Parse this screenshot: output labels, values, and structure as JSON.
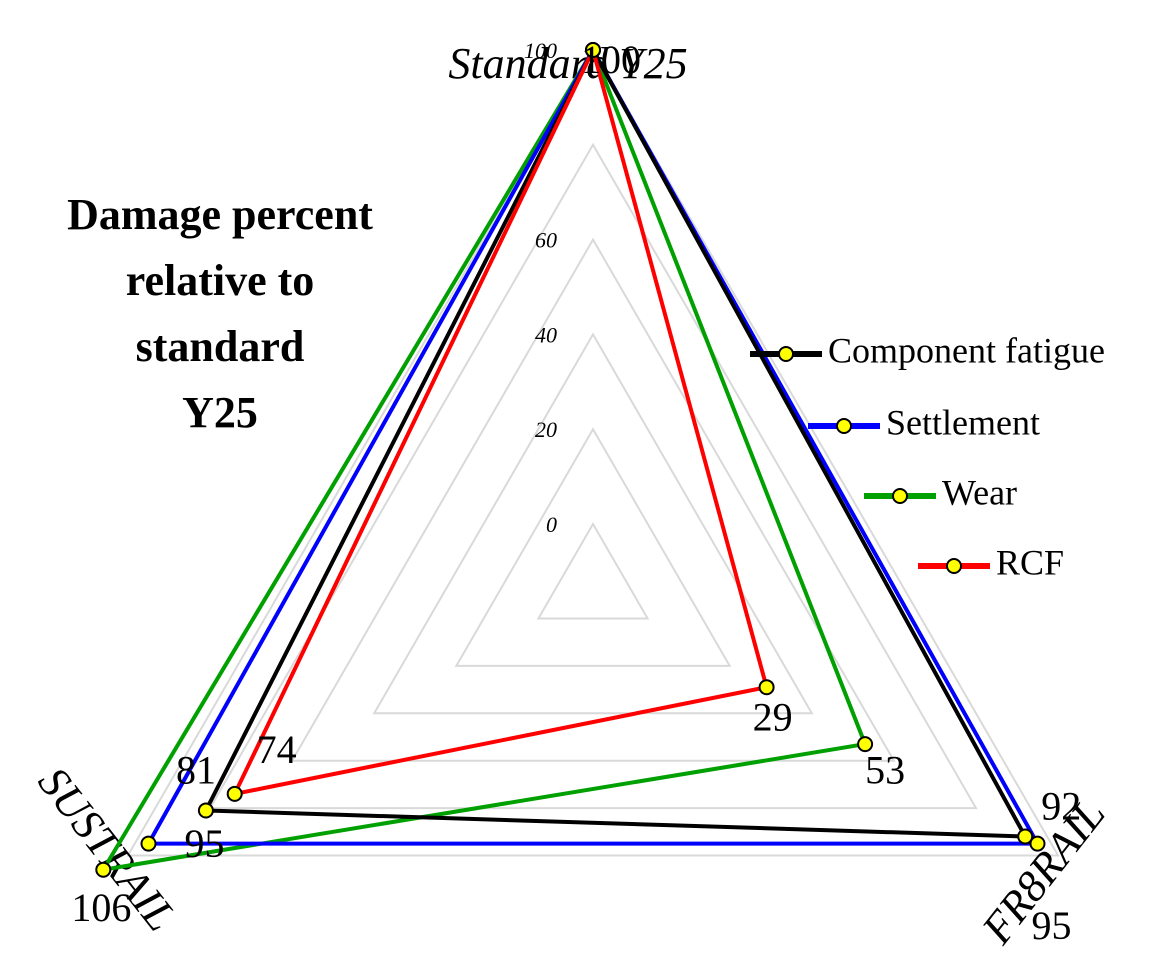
{
  "chart_data": {
    "type": "radar",
    "title_lines": [
      "Damage percent",
      "relative to",
      "standard",
      "Y25"
    ],
    "axes": [
      "Standard Y25",
      "FR8RAIL",
      "SUSTRAIL"
    ],
    "r_ticks": [
      "0",
      "20",
      "40",
      "60",
      "100"
    ],
    "r_range": [
      0,
      106
    ],
    "grid": true,
    "legend_position": "right",
    "series": [
      {
        "name": "Component fatigue",
        "color": "#000000",
        "values": [
          100,
          92,
          81
        ],
        "labels": [
          "",
          "92",
          "81"
        ]
      },
      {
        "name": "Settlement",
        "color": "#0000ff",
        "values": [
          100,
          95,
          95
        ],
        "labels": [
          "",
          "95",
          "95"
        ]
      },
      {
        "name": "Wear",
        "color": "#00a000",
        "values": [
          100,
          53,
          106
        ],
        "labels": [
          "",
          "53",
          "106"
        ]
      },
      {
        "name": "RCF",
        "color": "#ff0000",
        "values": [
          100,
          29,
          74
        ],
        "labels": [
          "100",
          "29",
          "74"
        ]
      }
    ],
    "marker_fill": "#ffff00",
    "grid_color": "#d9d9d9"
  }
}
